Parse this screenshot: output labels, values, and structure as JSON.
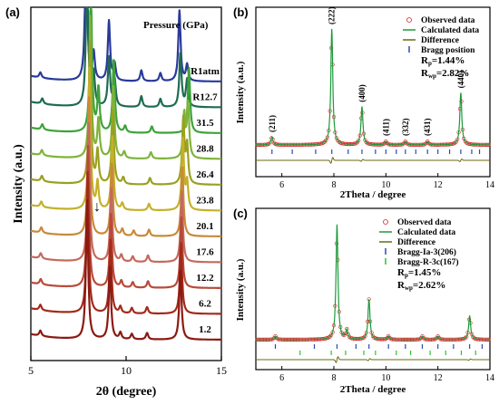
{
  "chart_data": [
    {
      "panel": "(a)",
      "type": "line",
      "xlabel": "2θ (degree)",
      "ylabel": "Intensity (a.u.)",
      "xlim": [
        5,
        15
      ],
      "xticks": [
        "5",
        "10",
        "15"
      ],
      "legend_title": "Pressure (GPa)",
      "series": [
        {
          "name": "1.2",
          "color": "#8b1a10",
          "peaks": [
            {
              "x": 5.5,
              "h": 0.1
            },
            {
              "x": 7.95,
              "h": 2.6
            },
            {
              "x": 9.15,
              "h": 1.35
            },
            {
              "x": 9.7,
              "h": 0.12
            },
            {
              "x": 10.3,
              "h": 0.1
            },
            {
              "x": 11.1,
              "h": 0.12
            },
            {
              "x": 12.85,
              "h": 1.3
            }
          ]
        },
        {
          "name": "6.2",
          "color": "#a32a1a",
          "peaks": [
            {
              "x": 5.5,
              "h": 0.1
            },
            {
              "x": 7.98,
              "h": 2.6
            },
            {
              "x": 9.18,
              "h": 1.35
            },
            {
              "x": 9.7,
              "h": 0.12
            },
            {
              "x": 10.3,
              "h": 0.1
            },
            {
              "x": 11.1,
              "h": 0.12
            },
            {
              "x": 12.88,
              "h": 1.3
            }
          ]
        },
        {
          "name": "12.2",
          "color": "#b84a3a",
          "peaks": [
            {
              "x": 5.52,
              "h": 0.1
            },
            {
              "x": 8.0,
              "h": 2.6
            },
            {
              "x": 9.2,
              "h": 1.35
            },
            {
              "x": 9.75,
              "h": 0.12
            },
            {
              "x": 10.35,
              "h": 0.1
            },
            {
              "x": 11.15,
              "h": 0.12
            },
            {
              "x": 12.9,
              "h": 1.3
            }
          ]
        },
        {
          "name": "17.6",
          "color": "#c46a5e",
          "peaks": [
            {
              "x": 5.52,
              "h": 0.1
            },
            {
              "x": 8.03,
              "h": 2.6
            },
            {
              "x": 9.22,
              "h": 1.35
            },
            {
              "x": 9.75,
              "h": 0.12
            },
            {
              "x": 10.35,
              "h": 0.1
            },
            {
              "x": 11.15,
              "h": 0.12
            },
            {
              "x": 12.92,
              "h": 1.3
            }
          ]
        },
        {
          "name": "20.1",
          "color": "#c9893a",
          "peaks": [
            {
              "x": 5.55,
              "h": 0.1
            },
            {
              "x": 8.05,
              "h": 2.6
            },
            {
              "x": 9.25,
              "h": 1.35
            },
            {
              "x": 9.8,
              "h": 0.12
            },
            {
              "x": 10.4,
              "h": 0.1
            },
            {
              "x": 11.2,
              "h": 0.12
            },
            {
              "x": 12.95,
              "h": 1.3
            }
          ]
        },
        {
          "name": "23.8",
          "color": "#c4b02a",
          "peaks": [
            {
              "x": 5.55,
              "h": 0.1
            },
            {
              "x": 8.08,
              "h": 2.6
            },
            {
              "x": 8.5,
              "h": 0.5
            },
            {
              "x": 9.28,
              "h": 1.35
            },
            {
              "x": 9.8,
              "h": 0.12
            },
            {
              "x": 11.2,
              "h": 0.12
            },
            {
              "x": 12.98,
              "h": 1.3
            },
            {
              "x": 13.2,
              "h": 0.5
            }
          ]
        },
        {
          "name": "26.4",
          "color": "#9aa020",
          "peaks": [
            {
              "x": 5.58,
              "h": 0.1
            },
            {
              "x": 8.1,
              "h": 2.6
            },
            {
              "x": 8.5,
              "h": 0.6
            },
            {
              "x": 9.3,
              "h": 1.35
            },
            {
              "x": 9.85,
              "h": 0.12
            },
            {
              "x": 11.25,
              "h": 0.12
            },
            {
              "x": 13.0,
              "h": 1.2
            },
            {
              "x": 13.2,
              "h": 0.7
            }
          ]
        },
        {
          "name": "28.8",
          "color": "#7fb33a",
          "peaks": [
            {
              "x": 5.58,
              "h": 0.1
            },
            {
              "x": 8.12,
              "h": 2.6
            },
            {
              "x": 8.55,
              "h": 0.7
            },
            {
              "x": 9.33,
              "h": 1.35
            },
            {
              "x": 9.9,
              "h": 0.12
            },
            {
              "x": 11.3,
              "h": 0.12
            },
            {
              "x": 13.05,
              "h": 0.8
            },
            {
              "x": 13.25,
              "h": 1.0
            }
          ]
        },
        {
          "name": "31.5",
          "color": "#3da33a",
          "peaks": [
            {
              "x": 5.6,
              "h": 0.1
            },
            {
              "x": 8.15,
              "h": 2.6
            },
            {
              "x": 8.55,
              "h": 0.8
            },
            {
              "x": 9.35,
              "h": 1.35
            },
            {
              "x": 9.95,
              "h": 0.12
            },
            {
              "x": 11.35,
              "h": 0.12
            },
            {
              "x": 13.3,
              "h": 1.2
            }
          ]
        },
        {
          "name": "R12.7",
          "color": "#1e6b52",
          "peaks": [
            {
              "x": 5.6,
              "h": 0.1
            },
            {
              "x": 7.95,
              "h": 2.6
            },
            {
              "x": 8.3,
              "h": 0.6
            },
            {
              "x": 9.1,
              "h": 0.9
            },
            {
              "x": 9.4,
              "h": 0.5
            },
            {
              "x": 10.8,
              "h": 0.2
            },
            {
              "x": 11.8,
              "h": 0.15
            },
            {
              "x": 12.85,
              "h": 1.0
            },
            {
              "x": 13.2,
              "h": 0.5
            }
          ]
        },
        {
          "name": "R1atm",
          "color": "#2a3a9a",
          "peaks": [
            {
              "x": 5.5,
              "h": 0.1
            },
            {
              "x": 7.9,
              "h": 2.6
            },
            {
              "x": 8.3,
              "h": 0.5
            },
            {
              "x": 9.1,
              "h": 1.1
            },
            {
              "x": 9.4,
              "h": 0.3
            },
            {
              "x": 10.8,
              "h": 0.2
            },
            {
              "x": 11.8,
              "h": 0.15
            },
            {
              "x": 12.8,
              "h": 1.3
            },
            {
              "x": 13.2,
              "h": 0.3
            }
          ]
        }
      ],
      "annotations": [
        "↓"
      ]
    },
    {
      "panel": "(b)",
      "type": "line",
      "xlabel": "2Theta / degree",
      "ylabel": "Intensity (a.u.)",
      "xlim": [
        5,
        14
      ],
      "xticks": [
        "6",
        "8",
        "10",
        "12",
        "14"
      ],
      "legend": [
        {
          "label": "Observed data",
          "kind": "circle",
          "color": "#d62020"
        },
        {
          "label": "Calculated data",
          "kind": "line",
          "color": "#1e9a3a"
        },
        {
          "label": "Difference",
          "kind": "line",
          "color": "#6b6a10"
        },
        {
          "label": "Bragg position",
          "kind": "tick",
          "color": "#2a4ab0"
        }
      ],
      "stats": {
        "Rp": "1.44%",
        "Rwp": "2.82%"
      },
      "peaks": [
        {
          "x": 5.62,
          "h": 0.07,
          "label": "(211)"
        },
        {
          "x": 7.92,
          "h": 1.0,
          "label": "(222)"
        },
        {
          "x": 9.08,
          "h": 0.33,
          "label": "(400)"
        },
        {
          "x": 10.0,
          "h": 0.03,
          "label": "(411)"
        },
        {
          "x": 10.75,
          "h": 0.03,
          "label": "(332)"
        },
        {
          "x": 11.6,
          "h": 0.03,
          "label": "(431)"
        },
        {
          "x": 12.88,
          "h": 0.45,
          "label": "(440)"
        }
      ],
      "bragg_positions": [
        5.62,
        6.4,
        7.3,
        7.92,
        8.55,
        9.08,
        9.6,
        10.0,
        10.4,
        10.75,
        11.15,
        11.6,
        12.0,
        12.45,
        12.88,
        13.3,
        13.6
      ]
    },
    {
      "panel": "(c)",
      "type": "line",
      "xlabel": "2Theta / degree",
      "ylabel": "Intensity (a.u.)",
      "xlim": [
        5,
        14
      ],
      "xticks": [
        "6",
        "8",
        "10",
        "12",
        "14"
      ],
      "legend": [
        {
          "label": "Observed data",
          "kind": "circle",
          "color": "#d62020"
        },
        {
          "label": "Calculated data",
          "kind": "line",
          "color": "#1e9a3a"
        },
        {
          "label": "Difference",
          "kind": "line",
          "color": "#6b6a10"
        },
        {
          "label": "Bragg-Ia-3(206)",
          "kind": "tick",
          "color": "#2a4ab0"
        },
        {
          "label": "Bragg-R-3c(167)",
          "kind": "tick",
          "color": "#30c030"
        }
      ],
      "stats": {
        "Rp": "1.45%",
        "Rwp": "2.62%"
      },
      "peaks": [
        {
          "x": 5.75,
          "h": 0.03
        },
        {
          "x": 8.12,
          "h": 1.0
        },
        {
          "x": 8.5,
          "h": 0.08
        },
        {
          "x": 9.35,
          "h": 0.35
        },
        {
          "x": 10.1,
          "h": 0.03
        },
        {
          "x": 11.4,
          "h": 0.03
        },
        {
          "x": 12.0,
          "h": 0.03
        },
        {
          "x": 13.22,
          "h": 0.21
        }
      ],
      "bragg_ia3": [
        5.75,
        7.25,
        8.12,
        8.85,
        9.35,
        10.1,
        10.75,
        11.4,
        12.0,
        12.6,
        13.22,
        13.7
      ],
      "bragg_r3c": [
        6.7,
        7.9,
        8.45,
        9.15,
        9.6,
        10.4,
        10.95,
        11.7,
        12.3,
        12.9,
        13.45
      ]
    }
  ]
}
